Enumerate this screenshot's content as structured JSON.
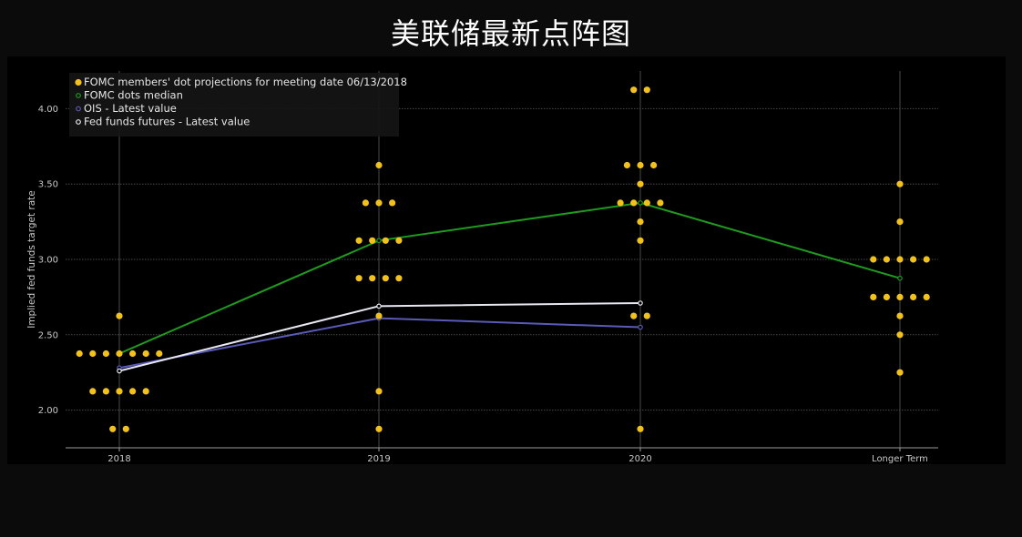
{
  "title": "美联储最新点阵图",
  "colors": {
    "background": "#000000",
    "grid": "#4a4a4a",
    "dots": "#f2c21b",
    "median": "#1f9a1f",
    "ois": "#5a5ab8",
    "futures": "#e8e8f2"
  },
  "chart_data": {
    "type": "scatter",
    "title": "美联储最新点阵图",
    "xlabel": "",
    "ylabel": "Implied fed funds target rate",
    "categories": [
      "2018",
      "2019",
      "2020",
      "Longer Term"
    ],
    "ylim": [
      1.75,
      4.25
    ],
    "yticks": [
      2.0,
      2.5,
      3.0,
      3.5,
      4.0
    ],
    "ytick_labels": [
      "2.00",
      "2.50",
      "3.00",
      "3.50",
      "4.00"
    ],
    "grid": true,
    "legend_position": "top-left",
    "legend": [
      {
        "label": "FOMC members' dot projections for meeting date 06/13/2018",
        "marker": "filled-dot",
        "color": "#f2c21b"
      },
      {
        "label": "FOMC dots median",
        "marker": "open-circle",
        "color": "#1f9a1f"
      },
      {
        "label": "OIS - Latest value",
        "marker": "open-circle",
        "color": "#5a5ab8"
      },
      {
        "label": "Fed funds futures - Latest value",
        "marker": "open-circle",
        "color": "#e8e8f2"
      }
    ],
    "dot_projections": [
      {
        "category": "2018",
        "rates": [
          {
            "rate": 2.625,
            "count": 1
          },
          {
            "rate": 2.375,
            "count": 7
          },
          {
            "rate": 2.125,
            "count": 5
          },
          {
            "rate": 1.875,
            "count": 2
          }
        ]
      },
      {
        "category": "2019",
        "rates": [
          {
            "rate": 3.625,
            "count": 1
          },
          {
            "rate": 3.375,
            "count": 3
          },
          {
            "rate": 3.125,
            "count": 4
          },
          {
            "rate": 2.875,
            "count": 4
          },
          {
            "rate": 2.625,
            "count": 1
          },
          {
            "rate": 2.125,
            "count": 1
          },
          {
            "rate": 1.875,
            "count": 1
          }
        ]
      },
      {
        "category": "2020",
        "rates": [
          {
            "rate": 4.125,
            "count": 2
          },
          {
            "rate": 3.625,
            "count": 3
          },
          {
            "rate": 3.5,
            "count": 1
          },
          {
            "rate": 3.375,
            "count": 4
          },
          {
            "rate": 3.25,
            "count": 1
          },
          {
            "rate": 3.125,
            "count": 1
          },
          {
            "rate": 2.625,
            "count": 2
          },
          {
            "rate": 1.875,
            "count": 1
          }
        ]
      },
      {
        "category": "Longer Term",
        "rates": [
          {
            "rate": 3.5,
            "count": 1
          },
          {
            "rate": 3.25,
            "count": 1
          },
          {
            "rate": 3.0,
            "count": 5
          },
          {
            "rate": 2.75,
            "count": 5
          },
          {
            "rate": 2.625,
            "count": 1
          },
          {
            "rate": 2.5,
            "count": 1
          },
          {
            "rate": 2.25,
            "count": 1
          }
        ]
      }
    ],
    "series": [
      {
        "name": "FOMC dots median",
        "categories": [
          "2018",
          "2019",
          "2020",
          "Longer Term"
        ],
        "values": [
          2.375,
          3.125,
          3.375,
          2.875
        ]
      },
      {
        "name": "OIS - Latest value",
        "categories": [
          "2018",
          "2019",
          "2020"
        ],
        "values": [
          2.28,
          2.61,
          2.55
        ]
      },
      {
        "name": "Fed funds futures - Latest value",
        "categories": [
          "2018",
          "2019",
          "2020"
        ],
        "values": [
          2.26,
          2.69,
          2.71
        ]
      }
    ]
  }
}
